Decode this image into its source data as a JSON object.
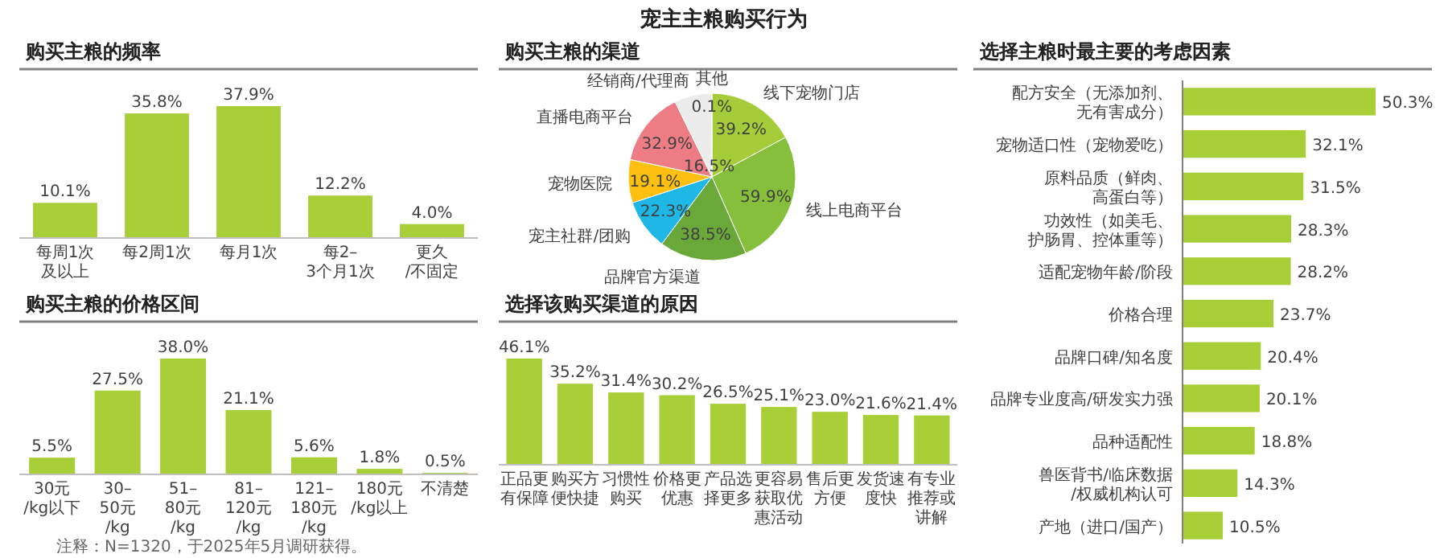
{
  "chart_data": [
    {
      "type": "other",
      "title": "宠主主粮购买行为",
      "annotations": [
        "注释：N=1320，于2025年5月调研获得。"
      ]
    },
    {
      "type": "bar",
      "title": "购买主粮的频率",
      "categories": [
        "每周1次及以上",
        "每2周1次",
        "每月1次",
        "每2–3个月1次",
        "更久/不固定"
      ],
      "values": [
        10.1,
        35.8,
        37.9,
        12.2,
        4.0
      ],
      "value_labels": [
        "10.1%",
        "35.8%",
        "37.9%",
        "12.2%",
        "4.0%"
      ],
      "color": "#a8cf38"
    },
    {
      "type": "bar",
      "title": "购买主粮的价格区间",
      "categories": [
        "30元/kg以下",
        "30–50元/kg",
        "51–80元/kg",
        "81–120元/kg",
        "121–180元/kg",
        "180元/kg以上",
        "不清楚"
      ],
      "values": [
        5.5,
        27.5,
        38.0,
        21.1,
        5.6,
        1.8,
        0.5
      ],
      "value_labels": [
        "5.5%",
        "27.5%",
        "38.0%",
        "21.1%",
        "5.6%",
        "1.8%",
        "0.5%"
      ],
      "color": "#a8cf38"
    },
    {
      "type": "pie",
      "title": "购买主粮的渠道",
      "categories": [
        "线下宠物门店",
        "线上电商平台",
        "品牌官方渠道",
        "宠主社群/团购",
        "宠物医院",
        "直播电商平台",
        "经销商/代理商",
        "其他"
      ],
      "values": [
        39.2,
        59.9,
        38.5,
        22.3,
        19.1,
        32.9,
        16.5,
        0.1
      ],
      "value_labels": [
        "39.2%",
        "59.9%",
        "38.5%",
        "22.3%",
        "19.1%",
        "32.9%",
        "16.5%",
        "0.1%"
      ],
      "colors": [
        "#a4cd39",
        "#86bf3b",
        "#6aa83a",
        "#1fb8e6",
        "#fdc010",
        "#ee7c84",
        "#ececec",
        "#d0d0d0"
      ]
    },
    {
      "type": "bar",
      "title": "选择该购买渠道的原因",
      "categories": [
        "正品更有保障",
        "购买方便快捷",
        "习惯性购买",
        "价格更优惠",
        "产品选择更多",
        "更容易获取优惠活动",
        "售后更方便",
        "发货速度快",
        "有专业推荐或讲解"
      ],
      "values": [
        46.1,
        35.2,
        31.4,
        30.2,
        26.5,
        25.1,
        23.0,
        21.6,
        21.4
      ],
      "value_labels": [
        "46.1%",
        "35.2%",
        "31.4%",
        "30.2%",
        "26.5%",
        "25.1%",
        "23.0%",
        "21.6%",
        "21.4%"
      ],
      "color": "#a8cf38"
    },
    {
      "type": "bar",
      "orientation": "horizontal",
      "title": "选择主粮时最主要的考虑因素",
      "categories": [
        "配方安全（无添加剂、无有害成分）",
        "宠物适口性（宠物爱吃）",
        "原料品质（鲜肉、高蛋白等）",
        "功效性（如美毛、护肠胃、控体重等）",
        "适配宠物年龄/阶段",
        "价格合理",
        "品牌口碑/知名度",
        "品牌专业度高/研发实力强",
        "品种适配性",
        "兽医背书/临床数据/权威机构认可",
        "产地（进口/国产）"
      ],
      "values": [
        50.3,
        32.1,
        31.5,
        28.3,
        28.2,
        23.7,
        20.4,
        20.1,
        18.8,
        14.3,
        10.5
      ],
      "value_labels": [
        "50.3%",
        "32.1%",
        "31.5%",
        "28.3%",
        "28.2%",
        "23.7%",
        "20.4%",
        "20.1%",
        "18.8%",
        "14.3%",
        "10.5%"
      ],
      "color": "#a8cf38"
    }
  ]
}
